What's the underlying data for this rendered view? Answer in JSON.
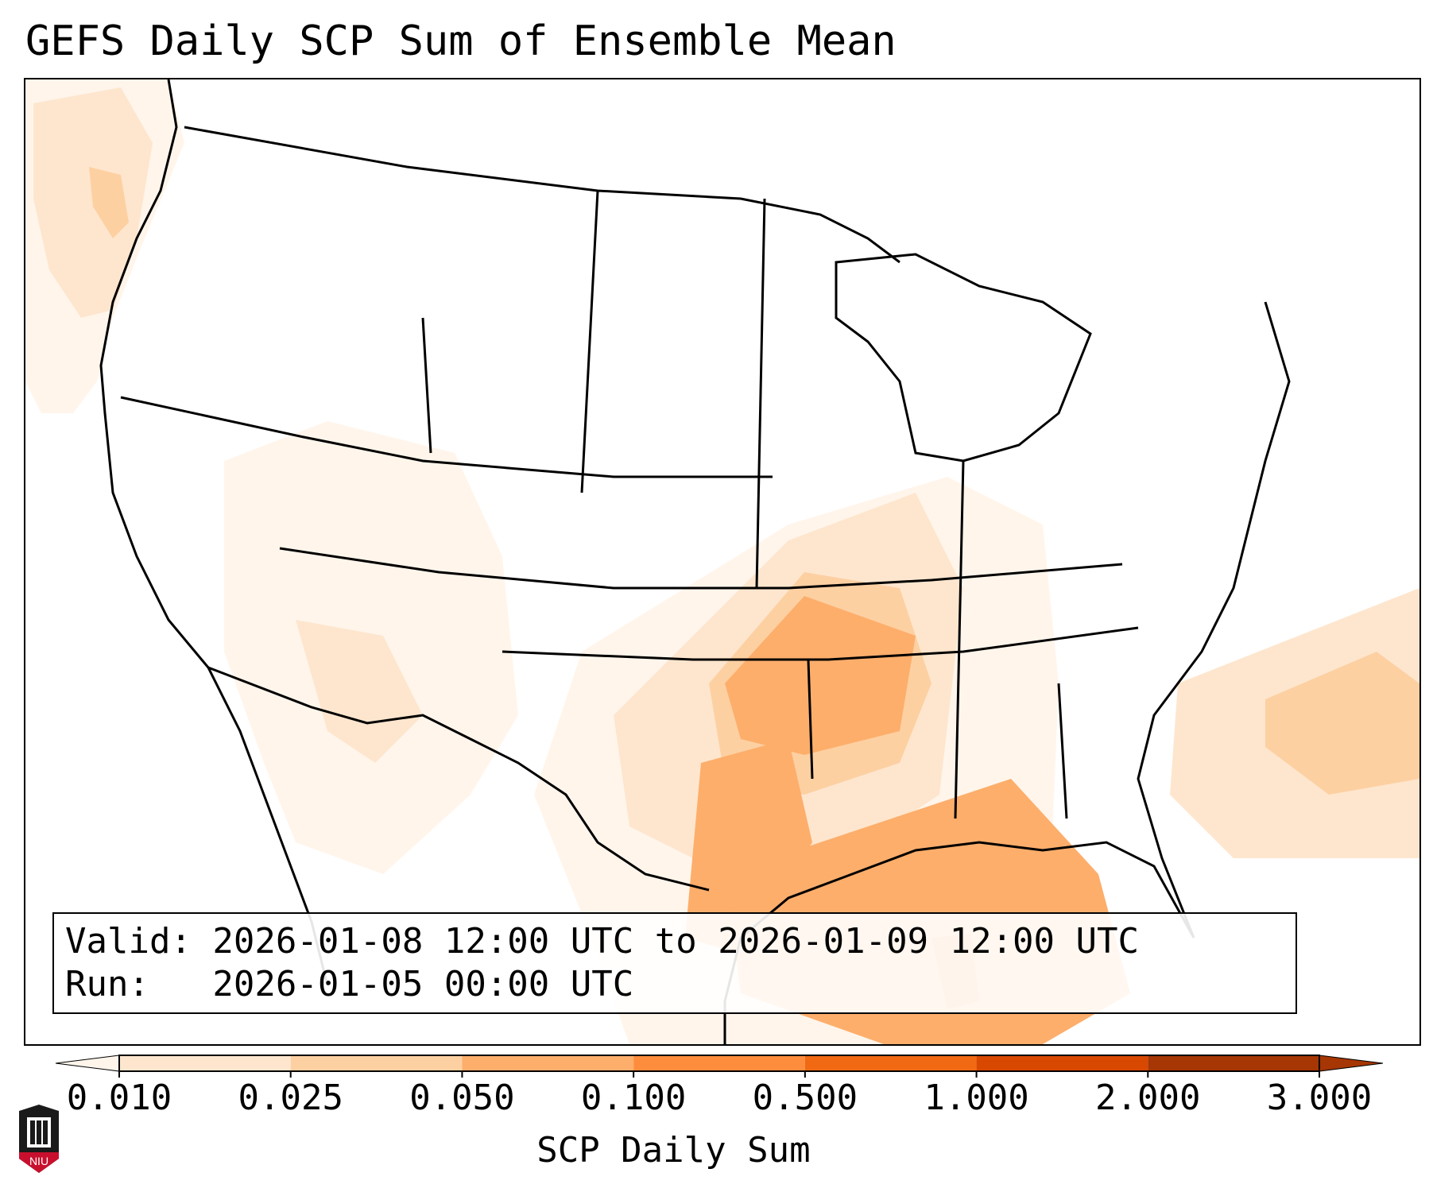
{
  "title": "GEFS Daily SCP Sum of Ensemble Mean",
  "info": {
    "valid": "Valid: 2026-01-08 12:00 UTC to 2026-01-09 12:00 UTC",
    "run": "Run:   2026-01-05 00:00 UTC"
  },
  "colorbar": {
    "label": "SCP Daily Sum",
    "ticks": [
      "0.010",
      "0.025",
      "0.050",
      "0.100",
      "0.500",
      "1.000",
      "2.000",
      "3.000"
    ],
    "colors": [
      "#fff5eb",
      "#fee6ce",
      "#fdd0a2",
      "#fdae6b",
      "#fd8d3c",
      "#f16913",
      "#d94801",
      "#a63603"
    ]
  },
  "logo": {
    "text": "NIU"
  },
  "colors": {
    "level1": "#fff5eb",
    "level2": "#fee6ce",
    "level3": "#fdd0a2",
    "level4": "#fdae6b",
    "level5": "#fd8d3c"
  }
}
